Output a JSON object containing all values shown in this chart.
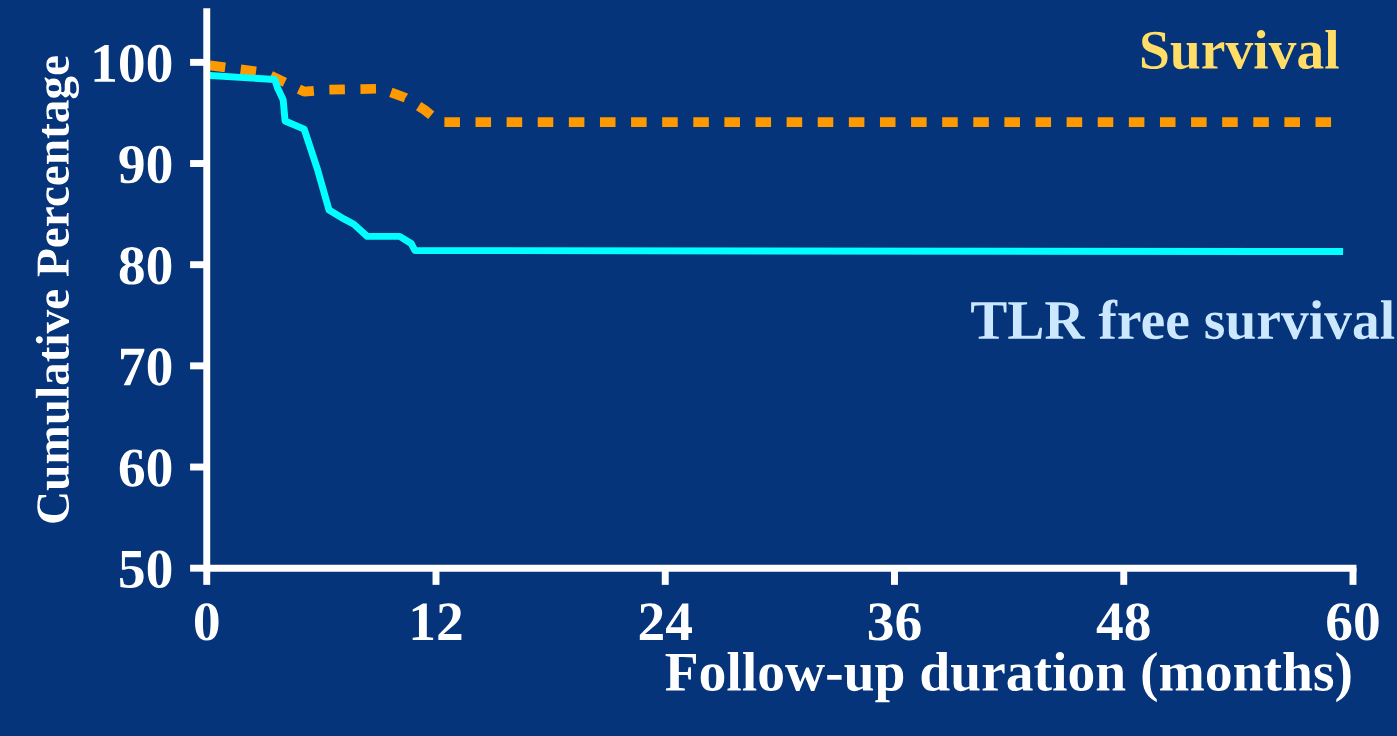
{
  "chart_data": {
    "type": "line",
    "xlabel": "Follow-up duration (months)",
    "ylabel": "Cumulative Percentage",
    "xlim": [
      0,
      60
    ],
    "xticks": [
      0,
      12,
      24,
      36,
      48,
      60
    ],
    "ylim": [
      50,
      105
    ],
    "yticks": [
      50,
      60,
      70,
      80,
      90,
      100
    ],
    "grid": false,
    "legend": false,
    "series": [
      {
        "name": "Survival",
        "color": "#ff9900",
        "line_style": "dotted",
        "x": [
          0.16,
          3.0,
          4.1,
          5.1,
          6.4,
          9.1,
          10.4,
          11.4,
          12.2,
          59.3
        ],
        "values": [
          99.7,
          99.0,
          98.0,
          97.1,
          97.3,
          97.4,
          96.5,
          95.3,
          94.1,
          94.1
        ]
      },
      {
        "name": "TLR free survival",
        "color": "#00ffff",
        "line_style": "solid",
        "x": [
          0.16,
          3.56,
          3.7,
          4.0,
          4.1,
          5.1,
          5.8,
          6.4,
          7.2,
          7.7,
          8.4,
          10.1,
          10.7,
          10.9,
          59.3
        ],
        "values": [
          98.7,
          98.3,
          97.5,
          96.3,
          94.2,
          93.4,
          89.4,
          85.4,
          84.5,
          84.0,
          82.8,
          82.8,
          82.1,
          81.4,
          81.3
        ]
      }
    ]
  }
}
